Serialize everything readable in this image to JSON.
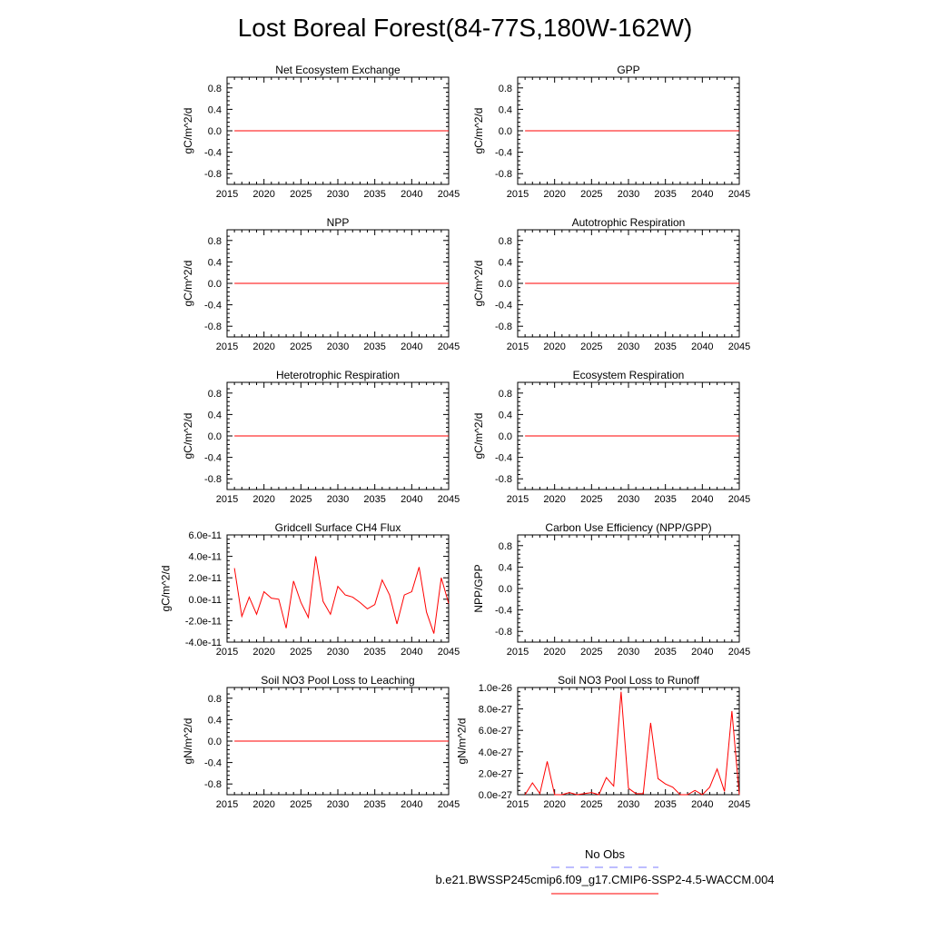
{
  "title": "Lost Boreal Forest(84-77S,180W-162W)",
  "colors": {
    "series": "#ff0000",
    "obs": "#7b7bff",
    "axis": "#000000"
  },
  "legend": {
    "entries": [
      {
        "label": "No Obs",
        "style": "dashed",
        "color": "#7b7bff"
      },
      {
        "label": "b.e21.BWSSP245cmip6.f09_g17.CMIP6-SSP2-4.5-WACCM.004",
        "style": "solid",
        "color": "#ff0000"
      }
    ]
  },
  "chart_data": [
    {
      "type": "line",
      "title": "Net Ecosystem Exchange",
      "ylabel": "gC/m^2/d",
      "xlabel": "",
      "xlim": [
        2015,
        2045
      ],
      "xticks": [
        2015,
        2020,
        2025,
        2030,
        2035,
        2040,
        2045
      ],
      "ylim": [
        -1.0,
        1.0
      ],
      "yticks": [
        -0.8,
        -0.4,
        0.0,
        0.4,
        0.8
      ],
      "ytick_labels": [
        "-0.8",
        "-0.4",
        "0.0",
        "0.4",
        "0.8"
      ],
      "series": [
        {
          "name": "b.e21.BWSSP245cmip6.f09_g17.CMIP6-SSP2-4.5-WACCM.004",
          "x": [
            2016,
            2045
          ],
          "values": [
            0,
            0
          ]
        }
      ]
    },
    {
      "type": "line",
      "title": "GPP",
      "ylabel": "gC/m^2/d",
      "xlabel": "",
      "xlim": [
        2015,
        2045
      ],
      "xticks": [
        2015,
        2020,
        2025,
        2030,
        2035,
        2040,
        2045
      ],
      "ylim": [
        -1.0,
        1.0
      ],
      "yticks": [
        -0.8,
        -0.4,
        0.0,
        0.4,
        0.8
      ],
      "ytick_labels": [
        "-0.8",
        "-0.4",
        "0.0",
        "0.4",
        "0.8"
      ],
      "series": [
        {
          "name": "b.e21.BWSSP245cmip6.f09_g17.CMIP6-SSP2-4.5-WACCM.004",
          "x": [
            2016,
            2045
          ],
          "values": [
            0,
            0
          ]
        }
      ]
    },
    {
      "type": "line",
      "title": "NPP",
      "ylabel": "gC/m^2/d",
      "xlabel": "",
      "xlim": [
        2015,
        2045
      ],
      "xticks": [
        2015,
        2020,
        2025,
        2030,
        2035,
        2040,
        2045
      ],
      "ylim": [
        -1.0,
        1.0
      ],
      "yticks": [
        -0.8,
        -0.4,
        0.0,
        0.4,
        0.8
      ],
      "ytick_labels": [
        "-0.8",
        "-0.4",
        "0.0",
        "0.4",
        "0.8"
      ],
      "series": [
        {
          "name": "b.e21.BWSSP245cmip6.f09_g17.CMIP6-SSP2-4.5-WACCM.004",
          "x": [
            2016,
            2045
          ],
          "values": [
            0,
            0
          ]
        }
      ]
    },
    {
      "type": "line",
      "title": "Autotrophic Respiration",
      "ylabel": "gC/m^2/d",
      "xlabel": "",
      "xlim": [
        2015,
        2045
      ],
      "xticks": [
        2015,
        2020,
        2025,
        2030,
        2035,
        2040,
        2045
      ],
      "ylim": [
        -1.0,
        1.0
      ],
      "yticks": [
        -0.8,
        -0.4,
        0.0,
        0.4,
        0.8
      ],
      "ytick_labels": [
        "-0.8",
        "-0.4",
        "0.0",
        "0.4",
        "0.8"
      ],
      "series": [
        {
          "name": "b.e21.BWSSP245cmip6.f09_g17.CMIP6-SSP2-4.5-WACCM.004",
          "x": [
            2016,
            2045
          ],
          "values": [
            0,
            0
          ]
        }
      ]
    },
    {
      "type": "line",
      "title": "Heterotrophic Respiration",
      "ylabel": "gC/m^2/d",
      "xlabel": "",
      "xlim": [
        2015,
        2045
      ],
      "xticks": [
        2015,
        2020,
        2025,
        2030,
        2035,
        2040,
        2045
      ],
      "ylim": [
        -1.0,
        1.0
      ],
      "yticks": [
        -0.8,
        -0.4,
        0.0,
        0.4,
        0.8
      ],
      "ytick_labels": [
        "-0.8",
        "-0.4",
        "0.0",
        "0.4",
        "0.8"
      ],
      "series": [
        {
          "name": "b.e21.BWSSP245cmip6.f09_g17.CMIP6-SSP2-4.5-WACCM.004",
          "x": [
            2016,
            2045
          ],
          "values": [
            0,
            0
          ]
        }
      ]
    },
    {
      "type": "line",
      "title": "Ecosystem Respiration",
      "ylabel": "gC/m^2/d",
      "xlabel": "",
      "xlim": [
        2015,
        2045
      ],
      "xticks": [
        2015,
        2020,
        2025,
        2030,
        2035,
        2040,
        2045
      ],
      "ylim": [
        -1.0,
        1.0
      ],
      "yticks": [
        -0.8,
        -0.4,
        0.0,
        0.4,
        0.8
      ],
      "ytick_labels": [
        "-0.8",
        "-0.4",
        "0.0",
        "0.4",
        "0.8"
      ],
      "series": [
        {
          "name": "b.e21.BWSSP245cmip6.f09_g17.CMIP6-SSP2-4.5-WACCM.004",
          "x": [
            2016,
            2045
          ],
          "values": [
            0,
            0
          ]
        }
      ]
    },
    {
      "type": "line",
      "title": "Gridcell Surface CH4 Flux",
      "ylabel": "gC/m^2/d",
      "xlabel": "",
      "xlim": [
        2015,
        2045
      ],
      "xticks": [
        2015,
        2020,
        2025,
        2030,
        2035,
        2040,
        2045
      ],
      "ylim": [
        -4e-11,
        6e-11
      ],
      "yticks": [
        -4e-11,
        -2e-11,
        0.0,
        2e-11,
        4e-11,
        6e-11
      ],
      "ytick_labels": [
        "-4.0e-11",
        "-2.0e-11",
        "0.0e-11",
        "2.0e-11",
        "4.0e-11",
        "6.0e-11"
      ],
      "series": [
        {
          "name": "b.e21.BWSSP245cmip6.f09_g17.CMIP6-SSP2-4.5-WACCM.004",
          "x": [
            2016,
            2017,
            2018,
            2019,
            2020,
            2021,
            2022,
            2023,
            2024,
            2025,
            2026,
            2027,
            2028,
            2029,
            2030,
            2031,
            2032,
            2033,
            2034,
            2035,
            2036,
            2037,
            2038,
            2039,
            2040,
            2041,
            2042,
            2043,
            2044,
            2045
          ],
          "values": [
            2.9e-11,
            -1.6e-11,
            2e-12,
            -1.4e-11,
            7e-12,
            1e-12,
            0.0,
            -2.7e-11,
            1.7e-11,
            -3e-12,
            -1.7e-11,
            4e-11,
            -2e-12,
            -1.4e-11,
            1.2e-11,
            4e-12,
            2e-12,
            -3e-12,
            -9e-12,
            -5e-12,
            1.8e-11,
            4e-12,
            -2.3e-11,
            4e-12,
            7e-12,
            3e-11,
            -1.2e-11,
            -3.2e-11,
            2e-11,
            -4e-12
          ]
        }
      ]
    },
    {
      "type": "line",
      "title": "Carbon Use Efficiency (NPP/GPP)",
      "ylabel": "NPP/GPP",
      "xlabel": "",
      "xlim": [
        2015,
        2045
      ],
      "xticks": [
        2015,
        2020,
        2025,
        2030,
        2035,
        2040,
        2045
      ],
      "ylim": [
        -1.0,
        1.0
      ],
      "yticks": [
        -0.8,
        -0.4,
        0.0,
        0.4,
        0.8
      ],
      "ytick_labels": [
        "-0.8",
        "-0.4",
        "0.0",
        "0.4",
        "0.8"
      ],
      "series": []
    },
    {
      "type": "line",
      "title": "Soil NO3 Pool Loss to Leaching",
      "ylabel": "gN/m^2/d",
      "xlabel": "",
      "xlim": [
        2015,
        2045
      ],
      "xticks": [
        2015,
        2020,
        2025,
        2030,
        2035,
        2040,
        2045
      ],
      "ylim": [
        -1.0,
        1.0
      ],
      "yticks": [
        -0.8,
        -0.4,
        0.0,
        0.4,
        0.8
      ],
      "ytick_labels": [
        "-0.8",
        "-0.4",
        "0.0",
        "0.4",
        "0.8"
      ],
      "series": [
        {
          "name": "b.e21.BWSSP245cmip6.f09_g17.CMIP6-SSP2-4.5-WACCM.004",
          "x": [
            2016,
            2045
          ],
          "values": [
            0,
            0
          ]
        }
      ]
    },
    {
      "type": "line",
      "title": "Soil NO3 Pool Loss to Runoff",
      "ylabel": "gN/m^2/d",
      "xlabel": "",
      "xlim": [
        2015,
        2045
      ],
      "xticks": [
        2015,
        2020,
        2025,
        2030,
        2035,
        2040,
        2045
      ],
      "ylim": [
        0.0,
        1e-26
      ],
      "yticks": [
        0.0,
        2e-27,
        4e-27,
        6e-27,
        8e-27,
        1e-26
      ],
      "ytick_labels": [
        "0.0e-27",
        "2.0e-27",
        "4.0e-27",
        "6.0e-27",
        "8.0e-27",
        "1.0e-26"
      ],
      "series": [
        {
          "name": "b.e21.BWSSP245cmip6.f09_g17.CMIP6-SSP2-4.5-WACCM.004",
          "x": [
            2016,
            2017,
            2018,
            2019,
            2020,
            2021,
            2022,
            2023,
            2024,
            2025,
            2026,
            2027,
            2028,
            2029,
            2030,
            2031,
            2032,
            2033,
            2034,
            2035,
            2036,
            2037,
            2038,
            2039,
            2040,
            2041,
            2042,
            2043,
            2044,
            2045
          ],
          "values": [
            0.0,
            1.1e-27,
            1e-28,
            3.1e-27,
            0.0,
            0.0,
            2e-28,
            0.0,
            1e-28,
            2e-28,
            0.0,
            1.6e-27,
            8e-28,
            9.6e-27,
            6e-28,
            1e-28,
            1e-28,
            6.7e-27,
            1.5e-27,
            1e-27,
            7e-28,
            0.0,
            0.0,
            4e-28,
            0.0,
            7e-28,
            2.4e-27,
            3e-28,
            7.8e-27,
            0.0
          ]
        }
      ]
    }
  ]
}
